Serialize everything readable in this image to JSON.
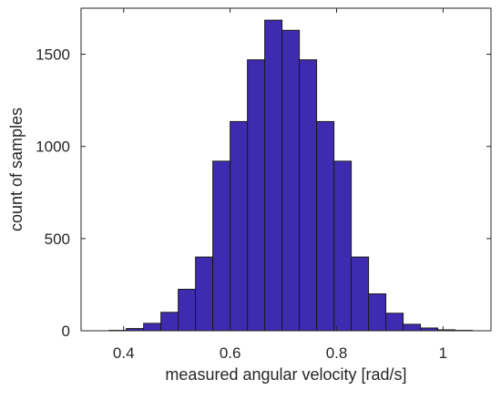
{
  "chart_data": {
    "type": "bar",
    "title": "",
    "xlabel": "measured angular velocity [rad/s]",
    "ylabel": "count of samples",
    "xlim": [
      0.32,
      1.09
    ],
    "ylim": [
      0,
      1750
    ],
    "xticks": [
      0.4,
      0.6,
      0.8,
      1
    ],
    "xtick_labels": [
      "0.4",
      "0.6",
      "0.8",
      "1"
    ],
    "yticks": [
      0,
      500,
      1000,
      1500
    ],
    "ytick_labels": [
      "0",
      "500",
      "1000",
      "1500"
    ],
    "grid": false,
    "bin_width": 0.0325,
    "bin_starts": [
      0.3725,
      0.405,
      0.4375,
      0.47,
      0.5025,
      0.535,
      0.5675,
      0.6,
      0.6325,
      0.665,
      0.6975,
      0.73,
      0.7625,
      0.795,
      0.8275,
      0.86,
      0.8925,
      0.925,
      0.9575,
      0.99,
      1.0225
    ],
    "values": [
      2,
      12,
      40,
      100,
      225,
      400,
      920,
      1135,
      1470,
      1685,
      1630,
      1470,
      1135,
      920,
      400,
      200,
      95,
      35,
      15,
      5,
      2
    ],
    "bar_color": "#3f2bb0",
    "edge_color": "#1a1a1a"
  }
}
